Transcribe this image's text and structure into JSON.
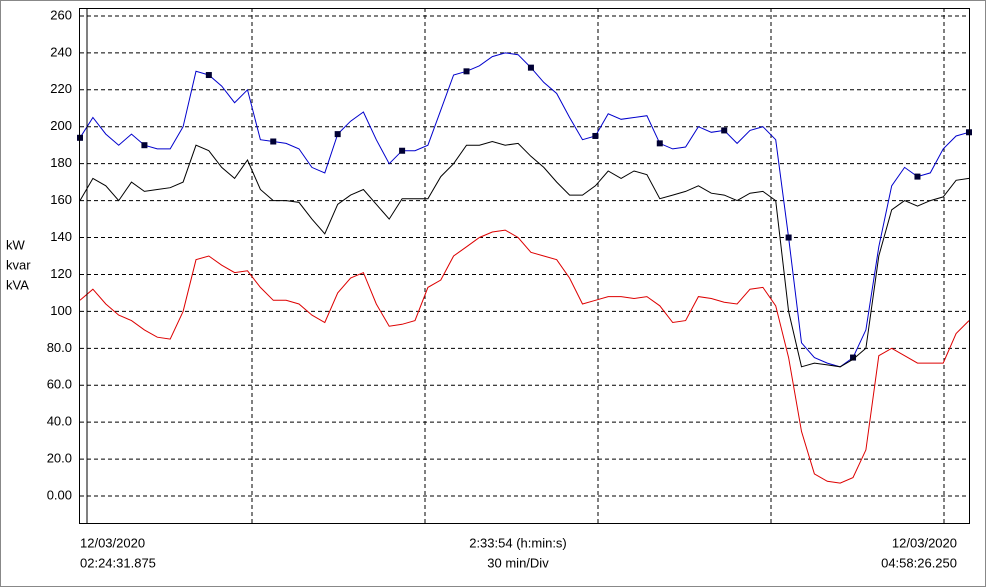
{
  "chart_data": {
    "type": "line",
    "y_axis_labels": [
      "kW",
      "kvar",
      "kVA"
    ],
    "ylim": [
      -14.6,
      264.3
    ],
    "yticks": [
      {
        "value": 0,
        "label": "0.00"
      },
      {
        "value": 20,
        "label": "20.0"
      },
      {
        "value": 40,
        "label": "40.0"
      },
      {
        "value": 60,
        "label": "60.0"
      },
      {
        "value": 80,
        "label": "80.0"
      },
      100,
      120,
      140,
      160,
      180,
      200,
      220,
      240,
      260
    ],
    "grid": true,
    "x_labels": {
      "start_date": "12/03/2020",
      "start_time": "02:24:31.875",
      "span": "2:33:54 (h:min:s)",
      "per_div": "30 min/Div",
      "end_date": "12/03/2020",
      "end_time": "04:58:26.250"
    },
    "series": [
      {
        "color": "#0000cc",
        "markers": true,
        "values": [
          194,
          205,
          196,
          190,
          196,
          190,
          188,
          188,
          200,
          230,
          228,
          222,
          213,
          220,
          193,
          192,
          191,
          188,
          178,
          175,
          196,
          203,
          208,
          193,
          180,
          187,
          187,
          190,
          209,
          228,
          230,
          233,
          238,
          240,
          239,
          232,
          224,
          218,
          205,
          193,
          195,
          207,
          204,
          205,
          206,
          191,
          188,
          189,
          200,
          197,
          198,
          191,
          198,
          200,
          193,
          140,
          83,
          75,
          72,
          70,
          75,
          90,
          135,
          168,
          178,
          173,
          175,
          188,
          195,
          197
        ]
      },
      {
        "color": "#000000",
        "markers": false,
        "values": [
          160,
          172,
          168,
          160,
          170,
          165,
          166,
          167,
          170,
          190,
          187,
          178,
          172,
          182,
          166,
          160,
          160,
          159,
          150,
          142,
          158,
          163,
          166,
          158,
          150,
          161,
          161,
          161,
          173,
          180,
          190,
          190,
          192,
          190,
          191,
          184,
          178,
          170,
          163,
          163,
          168,
          176,
          172,
          176,
          174,
          161,
          163,
          165,
          168,
          164,
          163,
          160,
          164,
          165,
          160,
          100,
          70,
          72,
          71,
          70,
          74,
          80,
          130,
          155,
          160,
          157,
          160,
          162,
          171,
          172
        ]
      },
      {
        "color": "#dd0000",
        "markers": false,
        "values": [
          106,
          112,
          104,
          98,
          95,
          90,
          86,
          85,
          100,
          128,
          130,
          125,
          121,
          122,
          113,
          106,
          106,
          104,
          98,
          94,
          110,
          118,
          121,
          104,
          92,
          93,
          95,
          113,
          117,
          130,
          135,
          140,
          143,
          144,
          140,
          132,
          130,
          128,
          118,
          104,
          106,
          108,
          108,
          107,
          108,
          103,
          94,
          95,
          108,
          107,
          105,
          104,
          112,
          113,
          103,
          75,
          35,
          12,
          8,
          7,
          10,
          25,
          76,
          80,
          76,
          72,
          72,
          72,
          88,
          95
        ]
      }
    ]
  }
}
